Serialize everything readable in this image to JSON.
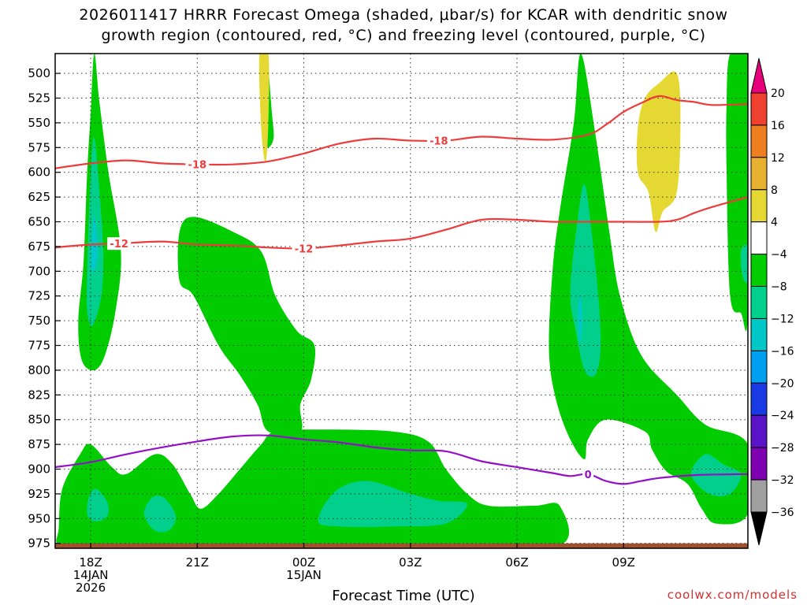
{
  "title": {
    "line1": "2026011417 HRRR Forecast Omega (shaded, μbar/s) for KCAR with dendritic snow",
    "line2": "growth region (contoured, red, °C) and freezing level (contoured, purple, °C)"
  },
  "credit": "coolwx.com/models",
  "chart_data": {
    "type": "heatmap",
    "title": "2026011417 HRRR Forecast Omega (shaded, μbar/s) for KCAR with dendritic snow growth region (contoured, red, °C) and freezing level (contoured, purple, °C)",
    "xlabel": "Forecast Time (UTC)",
    "ylabel": "",
    "x_unit": "hours since 17Z 14JAN 2026",
    "xlim": [
      -1,
      18.5
    ],
    "ylim": [
      980,
      480
    ],
    "y_ticks": [
      500,
      525,
      550,
      575,
      600,
      625,
      650,
      675,
      700,
      725,
      750,
      775,
      800,
      825,
      850,
      875,
      900,
      925,
      950,
      975
    ],
    "x_ticks": [
      {
        "x": 0,
        "label": "18Z",
        "sub": [
          "14JAN",
          "2026"
        ]
      },
      {
        "x": 3,
        "label": "21Z",
        "sub": []
      },
      {
        "x": 6,
        "label": "00Z",
        "sub": [
          "15JAN"
        ]
      },
      {
        "x": 9,
        "label": "03Z",
        "sub": []
      },
      {
        "x": 12,
        "label": "06Z",
        "sub": []
      },
      {
        "x": 15,
        "label": "09Z",
        "sub": []
      }
    ],
    "grid": true,
    "colorbar": {
      "levels": [
        -36,
        -32,
        -28,
        -24,
        -20,
        -16,
        -12,
        -8,
        -4,
        4,
        8,
        12,
        16,
        20
      ],
      "labels": [
        "20",
        "16",
        "12",
        "8",
        "4",
        "−4",
        "−8",
        "−12",
        "−16",
        "−20",
        "−24",
        "−28",
        "−32",
        "−36"
      ],
      "colors": [
        "#a0a0a0",
        "#7f00b3",
        "#5a14c8",
        "#1a3ae6",
        "#00a0f0",
        "#00c8c8",
        "#00d08c",
        "#00cc00",
        "#ffffff",
        "#e6d832",
        "#e8b030",
        "#ee7f20",
        "#f04030",
        "#e6007a"
      ]
    },
    "omega_regions": [
      {
        "value": -6,
        "color": "#00cc00",
        "points": [
          [
            -0.9,
            960
          ],
          [
            -0.8,
            920
          ],
          [
            -0.3,
            885
          ],
          [
            0,
            875
          ],
          [
            0.6,
            898
          ],
          [
            1.0,
            905
          ],
          [
            1.8,
            885
          ],
          [
            2.3,
            895
          ],
          [
            2.8,
            925
          ],
          [
            3.1,
            940
          ],
          [
            3.6,
            925
          ],
          [
            4.2,
            900
          ],
          [
            4.8,
            875
          ],
          [
            5.2,
            862
          ],
          [
            6.5,
            860
          ],
          [
            8.5,
            862
          ],
          [
            9.5,
            872
          ],
          [
            10.0,
            900
          ],
          [
            10.6,
            925
          ],
          [
            11.2,
            937
          ],
          [
            12.5,
            937
          ],
          [
            13.2,
            937
          ],
          [
            13.2,
            977
          ],
          [
            10.0,
            978
          ],
          [
            6.0,
            978
          ],
          [
            2.0,
            978
          ],
          [
            0.0,
            976
          ],
          [
            -0.9,
            976
          ]
        ]
      },
      {
        "value": -6,
        "color": "#00cc00",
        "points": [
          [
            -0.2,
            690
          ],
          [
            -0.1,
            600
          ],
          [
            0,
            540
          ],
          [
            0.1,
            480
          ],
          [
            0.25,
            530
          ],
          [
            0.5,
            600
          ],
          [
            0.85,
            680
          ],
          [
            0.7,
            740
          ],
          [
            0.4,
            785
          ],
          [
            0.1,
            800
          ],
          [
            -0.25,
            790
          ],
          [
            -0.35,
            750
          ]
        ]
      },
      {
        "value": -6,
        "color": "#00cc00",
        "points": [
          [
            2.5,
            660
          ],
          [
            2.9,
            645
          ],
          [
            4.0,
            660
          ],
          [
            4.8,
            680
          ],
          [
            5.2,
            725
          ],
          [
            5.8,
            760
          ],
          [
            6.3,
            775
          ],
          [
            6.2,
            810
          ],
          [
            5.9,
            835
          ],
          [
            5.9,
            862
          ],
          [
            5.0,
            862
          ],
          [
            4.7,
            835
          ],
          [
            4.2,
            805
          ],
          [
            3.6,
            775
          ],
          [
            2.9,
            725
          ],
          [
            2.5,
            710
          ]
        ]
      },
      {
        "value": -6,
        "color": "#00cc00",
        "points": [
          [
            4.85,
            520
          ],
          [
            4.95,
            480
          ],
          [
            5.1,
            540
          ],
          [
            5.15,
            565
          ],
          [
            5.0,
            575
          ],
          [
            4.9,
            565
          ],
          [
            4.85,
            540
          ]
        ]
      },
      {
        "value": -6,
        "color": "#00cc00",
        "points": [
          [
            13.0,
            700
          ],
          [
            13.2,
            640
          ],
          [
            13.6,
            550
          ],
          [
            13.8,
            480
          ],
          [
            14.2,
            560
          ],
          [
            14.6,
            660
          ],
          [
            14.9,
            725
          ],
          [
            15.5,
            785
          ],
          [
            16.5,
            825
          ],
          [
            17.3,
            855
          ],
          [
            18.5,
            875
          ],
          [
            18.5,
            945
          ],
          [
            17.6,
            955
          ],
          [
            17.2,
            940
          ],
          [
            16.8,
            915
          ],
          [
            16.2,
            902
          ],
          [
            15.8,
            880
          ],
          [
            15.6,
            862
          ],
          [
            14.5,
            850
          ],
          [
            14.0,
            870
          ],
          [
            13.9,
            890
          ],
          [
            13.5,
            870
          ],
          [
            13.1,
            830
          ],
          [
            12.9,
            780
          ]
        ]
      },
      {
        "value": -6,
        "color": "#00cc00",
        "points": [
          [
            18.0,
            480
          ],
          [
            18.5,
            480
          ],
          [
            18.5,
            740
          ],
          [
            18.3,
            742
          ],
          [
            18.0,
            725
          ],
          [
            17.9,
            600
          ],
          [
            17.9,
            530
          ]
        ]
      },
      {
        "value": -10,
        "color": "#00d08c",
        "points": [
          [
            -0.1,
            700
          ],
          [
            0,
            600
          ],
          [
            0.1,
            565
          ],
          [
            0.25,
            620
          ],
          [
            0.35,
            680
          ],
          [
            0.3,
            725
          ],
          [
            0.05,
            755
          ],
          [
            -0.1,
            740
          ]
        ]
      },
      {
        "value": -10,
        "color": "#00d08c",
        "points": [
          [
            -0.1,
            945
          ],
          [
            -0.05,
            928
          ],
          [
            0.15,
            920
          ],
          [
            0.45,
            932
          ],
          [
            0.5,
            945
          ],
          [
            0.3,
            952
          ],
          [
            0.05,
            952
          ]
        ]
      },
      {
        "value": -10,
        "color": "#00d08c",
        "points": [
          [
            1.5,
            945
          ],
          [
            1.75,
            928
          ],
          [
            2.1,
            930
          ],
          [
            2.4,
            948
          ],
          [
            2.2,
            962
          ],
          [
            1.8,
            962
          ]
        ]
      },
      {
        "value": -10,
        "color": "#00d08c",
        "points": [
          [
            6.4,
            952
          ],
          [
            6.9,
            922
          ],
          [
            7.8,
            912
          ],
          [
            9.0,
            925
          ],
          [
            9.8,
            932
          ],
          [
            10.6,
            935
          ],
          [
            10.0,
            955
          ],
          [
            8.5,
            958
          ],
          [
            7.0,
            958
          ]
        ]
      },
      {
        "value": -10,
        "color": "#00d08c",
        "points": [
          [
            13.5,
            720
          ],
          [
            13.7,
            650
          ],
          [
            13.9,
            612
          ],
          [
            14.1,
            660
          ],
          [
            14.3,
            730
          ],
          [
            14.35,
            780
          ],
          [
            14.2,
            805
          ],
          [
            13.9,
            800
          ],
          [
            13.65,
            760
          ]
        ]
      },
      {
        "value": -10,
        "color": "#00d08c",
        "points": [
          [
            16.9,
            905
          ],
          [
            17.3,
            885
          ],
          [
            17.8,
            895
          ],
          [
            18.3,
            905
          ],
          [
            18.0,
            925
          ],
          [
            17.4,
            925
          ]
        ]
      },
      {
        "value": -10,
        "color": "#00d08c",
        "points": [
          [
            18.3,
            680
          ],
          [
            18.5,
            675
          ],
          [
            18.5,
            710
          ],
          [
            18.35,
            705
          ]
        ]
      },
      {
        "value": -14,
        "color": "#00c8c8",
        "points": [
          [
            0.0,
            690
          ],
          [
            0.08,
            645
          ],
          [
            0.15,
            655
          ],
          [
            0.2,
            680
          ],
          [
            0.12,
            700
          ],
          [
            0.04,
            698
          ]
        ]
      },
      {
        "value": -14,
        "color": "#00c8c8",
        "points": [
          [
            13.72,
            740
          ],
          [
            13.78,
            725
          ],
          [
            13.84,
            745
          ],
          [
            13.8,
            770
          ],
          [
            13.74,
            765
          ]
        ]
      },
      {
        "value": 6,
        "color": "#e6d832",
        "points": [
          [
            4.75,
            480
          ],
          [
            5.0,
            480
          ],
          [
            5.0,
            550
          ],
          [
            4.92,
            590
          ],
          [
            4.8,
            555
          ]
        ]
      },
      {
        "value": 6,
        "color": "#e6d832",
        "points": [
          [
            15.4,
            555
          ],
          [
            15.6,
            525
          ],
          [
            16.0,
            510
          ],
          [
            16.5,
            500
          ],
          [
            16.6,
            550
          ],
          [
            16.5,
            620
          ],
          [
            16.1,
            640
          ],
          [
            15.9,
            660
          ],
          [
            15.7,
            620
          ],
          [
            15.4,
            600
          ]
        ]
      }
    ],
    "ground": {
      "pressure_top": 975,
      "color": "#a0522d"
    },
    "dgz_contours": [
      {
        "label": "-18",
        "label_at": [
          3.0,
          592
        ],
        "points": [
          [
            -1,
            596
          ],
          [
            0,
            591
          ],
          [
            1,
            588
          ],
          [
            2,
            591
          ],
          [
            3,
            592
          ],
          [
            4,
            592
          ],
          [
            5,
            589
          ],
          [
            6,
            581
          ],
          [
            7,
            571
          ],
          [
            8,
            566
          ],
          [
            9,
            568
          ],
          [
            10,
            568
          ],
          [
            11,
            564
          ],
          [
            12,
            566
          ],
          [
            13,
            567
          ],
          [
            14,
            562
          ],
          [
            14.5,
            552
          ],
          [
            15,
            539
          ],
          [
            15.5,
            530
          ],
          [
            16,
            523
          ],
          [
            16.5,
            527
          ],
          [
            17,
            529
          ],
          [
            17.5,
            532
          ],
          [
            18.5,
            531
          ]
        ]
      },
      {
        "label": "-18",
        "label_at": [
          9.8,
          568
        ],
        "points": []
      },
      {
        "label": "-12",
        "label_at": [
          0.8,
          672
        ],
        "points": [
          [
            -1,
            676
          ],
          [
            0,
            673
          ],
          [
            0.8,
            672
          ],
          [
            2,
            670
          ],
          [
            3,
            673
          ],
          [
            4,
            674
          ],
          [
            5,
            676
          ],
          [
            6,
            677
          ],
          [
            7,
            674
          ],
          [
            8,
            670
          ],
          [
            9,
            667
          ],
          [
            10,
            658
          ],
          [
            11,
            648
          ],
          [
            12,
            648
          ],
          [
            13,
            650
          ],
          [
            14,
            650
          ],
          [
            15,
            650
          ],
          [
            16,
            650
          ],
          [
            16.5,
            648
          ],
          [
            17,
            641
          ],
          [
            17.5,
            635
          ],
          [
            18.5,
            625
          ]
        ]
      },
      {
        "label": "-12",
        "label_at": [
          6.0,
          677
        ],
        "points": []
      }
    ],
    "freezing_level": {
      "label": "0",
      "label_at": [
        14.0,
        905
      ],
      "points": [
        [
          -1,
          898
        ],
        [
          0,
          893
        ],
        [
          1,
          885
        ],
        [
          2,
          878
        ],
        [
          3,
          872
        ],
        [
          4,
          867
        ],
        [
          5,
          866
        ],
        [
          6,
          870
        ],
        [
          7,
          873
        ],
        [
          8,
          878
        ],
        [
          9,
          881
        ],
        [
          10,
          882
        ],
        [
          11,
          892
        ],
        [
          12,
          898
        ],
        [
          13,
          904
        ],
        [
          13.5,
          907
        ],
        [
          14,
          905
        ],
        [
          14.5,
          912
        ],
        [
          15,
          915
        ],
        [
          15.5,
          912
        ],
        [
          16,
          909
        ],
        [
          17,
          906
        ],
        [
          18.5,
          905
        ]
      ]
    }
  }
}
